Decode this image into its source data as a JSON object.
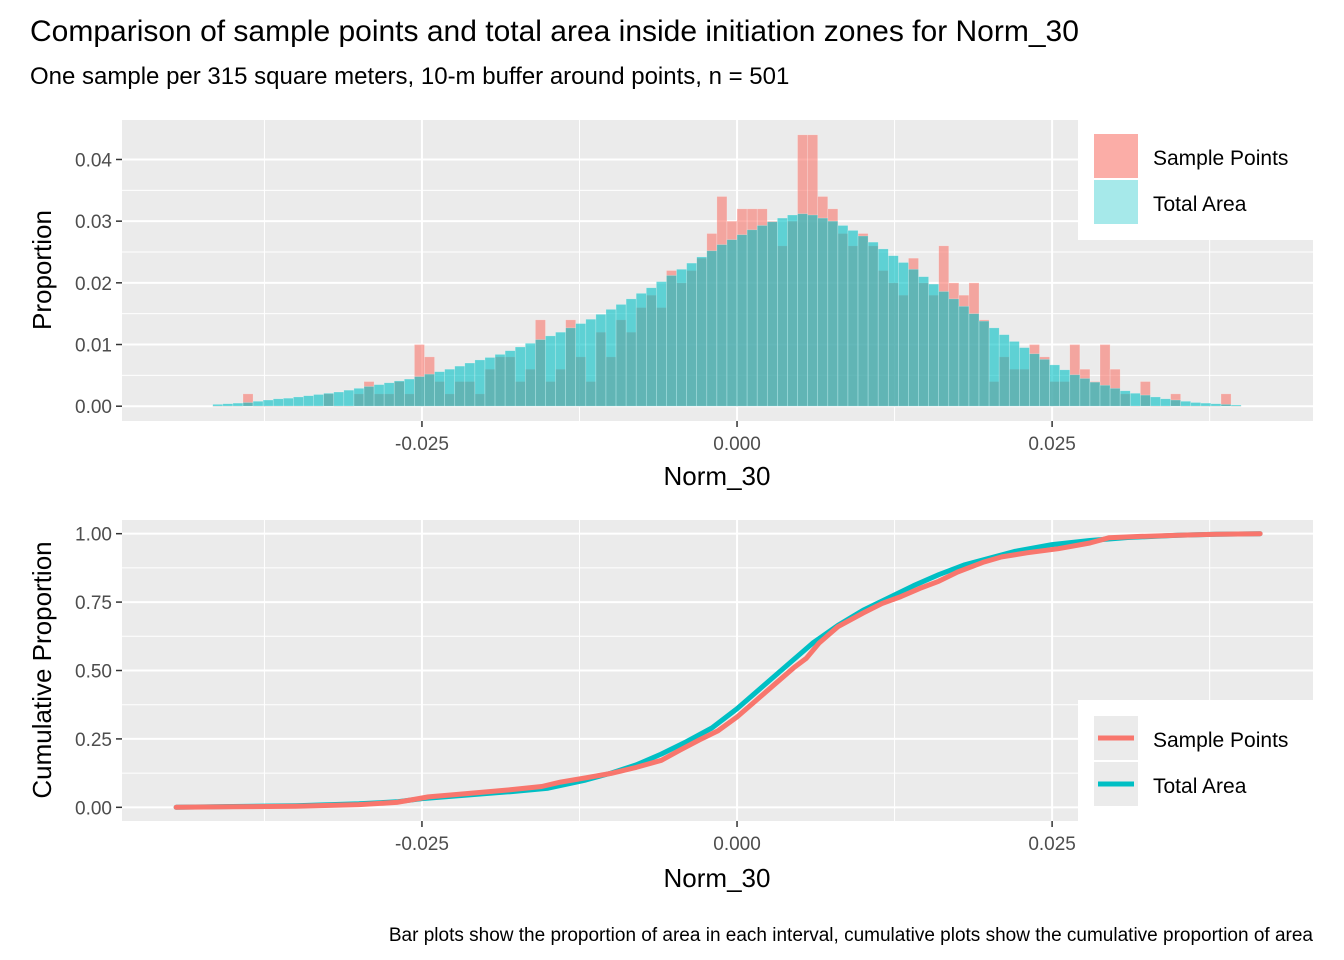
{
  "title": "Comparison of sample points and total area inside initiation zones for Norm_30",
  "subtitle": "One sample per 315 square meters, 10-m buffer around points, n = 501",
  "caption": "Bar plots show the proportion of area in each interval, cumulative plots show the cumulative proportion of area",
  "colors": {
    "sample_points": "#F8766D",
    "total_area": "#00BFC4",
    "panel_bg": "#EBEBEB",
    "grid": "#FFFFFF"
  },
  "chart_data": [
    {
      "type": "bar",
      "bar_style": "overlapping translucent histogram",
      "xlabel": "Norm_30",
      "ylabel": "Proportion",
      "xlim": [
        -0.0488,
        0.0457
      ],
      "ylim": [
        -0.0024,
        0.0464
      ],
      "x_ticks": [
        -0.025,
        0.0,
        0.025
      ],
      "x_tick_labels": [
        "-0.025",
        "0.000",
        "0.025"
      ],
      "y_ticks": [
        0.0,
        0.01,
        0.02,
        0.03,
        0.04
      ],
      "y_tick_labels": [
        "0.00",
        "0.01",
        "0.02",
        "0.03",
        "0.04"
      ],
      "grid": true,
      "legend_position": "top-right",
      "bin_width": 0.0008,
      "bin_centers": [
        -0.0412,
        -0.0404,
        -0.0396,
        -0.0388,
        -0.038,
        -0.0372,
        -0.0364,
        -0.0356,
        -0.0348,
        -0.034,
        -0.0332,
        -0.0324,
        -0.0316,
        -0.0308,
        -0.03,
        -0.0292,
        -0.0284,
        -0.0276,
        -0.0268,
        -0.026,
        -0.0252,
        -0.0244,
        -0.0236,
        -0.0228,
        -0.022,
        -0.0212,
        -0.0204,
        -0.0196,
        -0.0188,
        -0.018,
        -0.0172,
        -0.0164,
        -0.0156,
        -0.0148,
        -0.014,
        -0.0132,
        -0.0124,
        -0.0116,
        -0.0108,
        -0.01,
        -0.0092,
        -0.0084,
        -0.0076,
        -0.0068,
        -0.006,
        -0.0052,
        -0.0044,
        -0.0036,
        -0.0028,
        -0.002,
        -0.0012,
        -0.0004,
        0.0004,
        0.0012,
        0.002,
        0.0028,
        0.0036,
        0.0044,
        0.0052,
        0.006,
        0.0068,
        0.0076,
        0.0084,
        0.0092,
        0.01,
        0.0108,
        0.0116,
        0.0124,
        0.0132,
        0.014,
        0.0148,
        0.0156,
        0.0164,
        0.0172,
        0.018,
        0.0188,
        0.0196,
        0.0204,
        0.0212,
        0.022,
        0.0228,
        0.0236,
        0.0244,
        0.0252,
        0.026,
        0.0268,
        0.0276,
        0.0284,
        0.0292,
        0.03,
        0.0308,
        0.0316,
        0.0324,
        0.0332,
        0.034,
        0.0348,
        0.0356,
        0.0364,
        0.0372,
        0.038,
        0.0388,
        0.0396
      ],
      "series": [
        {
          "name": "Sample Points",
          "color": "#F8766D",
          "values": [
            0,
            0,
            0,
            0.002,
            0,
            0,
            0,
            0,
            0,
            0,
            0,
            0.002,
            0,
            0,
            0.002,
            0.004,
            0.002,
            0.002,
            0.004,
            0.002,
            0.01,
            0.008,
            0.004,
            0.002,
            0.004,
            0.004,
            0.002,
            0.006,
            0.008,
            0.008,
            0.004,
            0.006,
            0.014,
            0.004,
            0.006,
            0.014,
            0.008,
            0.004,
            0.012,
            0.008,
            0.014,
            0.012,
            0.016,
            0.018,
            0.016,
            0.022,
            0.02,
            0.022,
            0.024,
            0.028,
            0.034,
            0.03,
            0.032,
            0.032,
            0.032,
            0.03,
            0.026,
            0.03,
            0.044,
            0.044,
            0.034,
            0.032,
            0.028,
            0.026,
            0.028,
            0.026,
            0.022,
            0.02,
            0.018,
            0.024,
            0.02,
            0.018,
            0.026,
            0.02,
            0.018,
            0.02,
            0.014,
            0.004,
            0.008,
            0.006,
            0.006,
            0.01,
            0.008,
            0.004,
            0.004,
            0.01,
            0.006,
            0.004,
            0.01,
            0.006,
            0.002,
            0,
            0.004,
            0,
            0,
            0.002,
            0,
            0,
            0,
            0,
            0.002,
            0
          ]
        },
        {
          "name": "Total Area",
          "color": "#00BFC4",
          "values": [
            0.0003,
            0.0004,
            0.0005,
            0.0006,
            0.0008,
            0.001,
            0.0012,
            0.0013,
            0.0015,
            0.0017,
            0.0019,
            0.0021,
            0.0023,
            0.0026,
            0.0029,
            0.0032,
            0.0035,
            0.0038,
            0.0041,
            0.0044,
            0.0048,
            0.0052,
            0.0056,
            0.006,
            0.0065,
            0.007,
            0.0075,
            0.0079,
            0.0084,
            0.009,
            0.0096,
            0.0102,
            0.0108,
            0.0114,
            0.012,
            0.0127,
            0.0134,
            0.0141,
            0.0149,
            0.0157,
            0.0165,
            0.0174,
            0.0183,
            0.0192,
            0.0202,
            0.0212,
            0.0222,
            0.0232,
            0.0242,
            0.0252,
            0.0262,
            0.027,
            0.0278,
            0.0286,
            0.0293,
            0.0299,
            0.0305,
            0.031,
            0.0312,
            0.031,
            0.0305,
            0.03,
            0.0293,
            0.0285,
            0.0276,
            0.0266,
            0.0255,
            0.0244,
            0.0233,
            0.0222,
            0.021,
            0.0198,
            0.0186,
            0.0174,
            0.0162,
            0.015,
            0.0138,
            0.0127,
            0.0116,
            0.0105,
            0.0095,
            0.0085,
            0.0076,
            0.0067,
            0.0059,
            0.0051,
            0.0045,
            0.0039,
            0.0034,
            0.0029,
            0.0025,
            0.0021,
            0.0018,
            0.0015,
            0.0012,
            0.001,
            0.0008,
            0.0006,
            0.0005,
            0.0004,
            0.0003,
            0.0002
          ]
        }
      ]
    },
    {
      "type": "line",
      "xlabel": "Norm_30",
      "ylabel": "Cumulative Proportion",
      "xlim": [
        -0.0488,
        0.0457
      ],
      "ylim": [
        -0.05,
        1.05
      ],
      "x_ticks": [
        -0.025,
        0.0,
        0.025
      ],
      "x_tick_labels": [
        "-0.025",
        "0.000",
        "0.025"
      ],
      "y_ticks": [
        0.0,
        0.25,
        0.5,
        0.75,
        1.0
      ],
      "y_tick_labels": [
        "0.00",
        "0.25",
        "0.50",
        "0.75",
        "1.00"
      ],
      "grid": true,
      "legend_position": "bottom-right",
      "series": [
        {
          "name": "Total Area",
          "color": "#00BFC4",
          "points": [
            [
              -0.0445,
              0.0
            ],
            [
              -0.04,
              0.003
            ],
            [
              -0.035,
              0.006
            ],
            [
              -0.03,
              0.013
            ],
            [
              -0.027,
              0.02
            ],
            [
              -0.025,
              0.032
            ],
            [
              -0.022,
              0.043
            ],
            [
              -0.018,
              0.057
            ],
            [
              -0.015,
              0.07
            ],
            [
              -0.012,
              0.1
            ],
            [
              -0.01,
              0.125
            ],
            [
              -0.008,
              0.155
            ],
            [
              -0.006,
              0.195
            ],
            [
              -0.004,
              0.24
            ],
            [
              -0.002,
              0.29
            ],
            [
              0.0,
              0.36
            ],
            [
              0.002,
              0.44
            ],
            [
              0.004,
              0.52
            ],
            [
              0.006,
              0.6
            ],
            [
              0.008,
              0.665
            ],
            [
              0.01,
              0.72
            ],
            [
              0.012,
              0.765
            ],
            [
              0.014,
              0.81
            ],
            [
              0.016,
              0.85
            ],
            [
              0.018,
              0.885
            ],
            [
              0.02,
              0.91
            ],
            [
              0.022,
              0.935
            ],
            [
              0.025,
              0.96
            ],
            [
              0.028,
              0.975
            ],
            [
              0.031,
              0.986
            ],
            [
              0.035,
              0.994
            ],
            [
              0.038,
              0.998
            ],
            [
              0.0415,
              1.0
            ]
          ]
        },
        {
          "name": "Sample Points",
          "color": "#F8766D",
          "points": [
            [
              -0.0445,
              0.0
            ],
            [
              -0.04,
              0.002
            ],
            [
              -0.035,
              0.004
            ],
            [
              -0.03,
              0.01
            ],
            [
              -0.027,
              0.018
            ],
            [
              -0.0255,
              0.03
            ],
            [
              -0.0245,
              0.038
            ],
            [
              -0.0225,
              0.046
            ],
            [
              -0.02,
              0.056
            ],
            [
              -0.018,
              0.064
            ],
            [
              -0.0155,
              0.076
            ],
            [
              -0.014,
              0.092
            ],
            [
              -0.012,
              0.108
            ],
            [
              -0.01,
              0.124
            ],
            [
              -0.008,
              0.146
            ],
            [
              -0.006,
              0.172
            ],
            [
              -0.0045,
              0.21
            ],
            [
              -0.003,
              0.246
            ],
            [
              -0.0015,
              0.28
            ],
            [
              0.0,
              0.33
            ],
            [
              0.0015,
              0.39
            ],
            [
              0.003,
              0.45
            ],
            [
              0.0045,
              0.51
            ],
            [
              0.0055,
              0.545
            ],
            [
              0.0065,
              0.6
            ],
            [
              0.008,
              0.66
            ],
            [
              0.01,
              0.71
            ],
            [
              0.0115,
              0.745
            ],
            [
              0.013,
              0.77
            ],
            [
              0.0145,
              0.8
            ],
            [
              0.016,
              0.826
            ],
            [
              0.0175,
              0.86
            ],
            [
              0.0195,
              0.895
            ],
            [
              0.021,
              0.915
            ],
            [
              0.023,
              0.93
            ],
            [
              0.0255,
              0.945
            ],
            [
              0.028,
              0.966
            ],
            [
              0.0295,
              0.985
            ],
            [
              0.032,
              0.99
            ],
            [
              0.035,
              0.994
            ],
            [
              0.038,
              0.998
            ],
            [
              0.0415,
              1.0
            ]
          ]
        }
      ]
    }
  ]
}
